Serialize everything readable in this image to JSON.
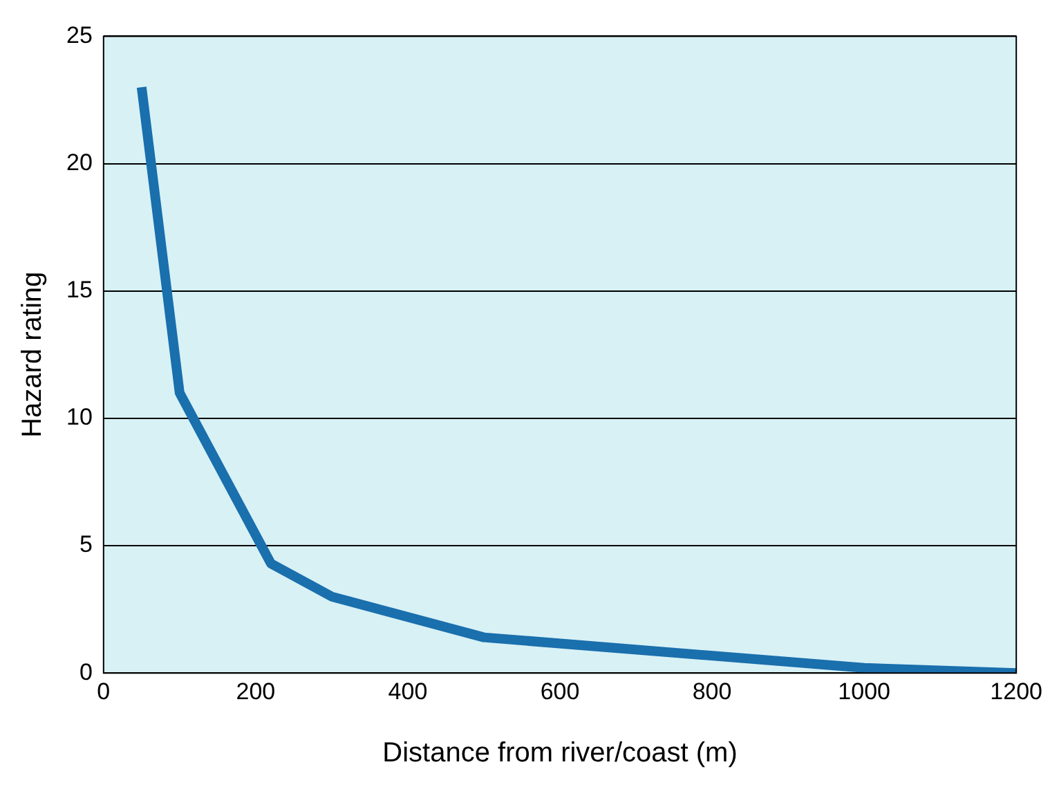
{
  "chart_data": {
    "type": "line",
    "xlabel": "Distance from river/coast (m)",
    "ylabel": "Hazard rating",
    "x": [
      50,
      100,
      220,
      300,
      500,
      1000,
      1200
    ],
    "series": [
      {
        "color": "#1a6fad",
        "values": [
          23,
          11,
          4.3,
          3,
          1.4,
          0.2,
          0
        ]
      }
    ],
    "xlim": [
      0,
      1200
    ],
    "xticks": [
      0,
      200,
      400,
      600,
      800,
      1000,
      1200
    ],
    "ylim": [
      0,
      25
    ],
    "yticks": [
      0,
      5,
      10,
      15,
      20,
      25
    ],
    "grid": "y",
    "legend": false,
    "marker": "none",
    "line_style": "solid"
  }
}
